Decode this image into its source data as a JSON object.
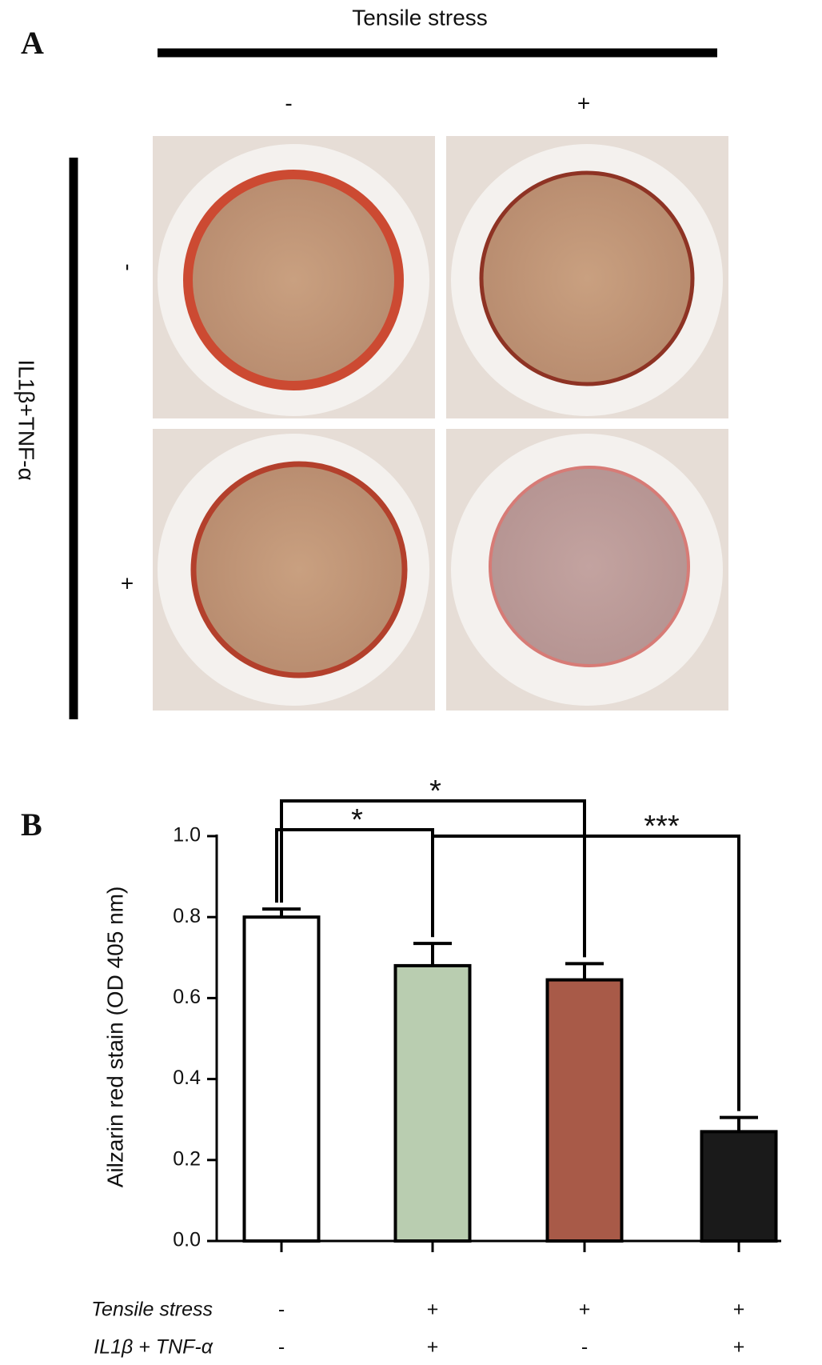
{
  "panel_a": {
    "label": "A",
    "column_header": "Tensile stress",
    "column_labels": [
      "-",
      "+"
    ],
    "row_header": "IL1β+TNF-α",
    "row_labels": [
      "-",
      "+"
    ]
  },
  "chart_data": {
    "type": "bar",
    "panel_label": "B",
    "y_label": "Ailzarin red stain (OD 405 nm)",
    "categories": [
      null,
      null,
      null,
      null
    ],
    "values": [
      0.8,
      0.68,
      0.645,
      0.27
    ],
    "errors": [
      0.02,
      0.055,
      0.04,
      0.035
    ],
    "colors": [
      "#ffffff",
      "#b9cdb0",
      "#a85a48",
      "#1a1a1a"
    ],
    "ylim": [
      0,
      1
    ],
    "yticks": [
      {
        "value": 0,
        "label": "0.0"
      },
      0.2,
      0.4,
      0.6,
      0.8,
      {
        "value": 1,
        "label": "1.0"
      }
    ],
    "conditions": [
      {
        "name": "Tensile stress",
        "values": [
          "-",
          "+",
          "+",
          "+"
        ]
      },
      {
        "name": "IL1β + TNF-α",
        "values": [
          "-",
          "+",
          "-",
          "+"
        ]
      }
    ],
    "significance": [
      {
        "label": "*",
        "groups": [
          0,
          2
        ]
      },
      {
        "label": "*",
        "groups": [
          0,
          1
        ]
      },
      {
        "label": "***",
        "groups": [
          1,
          3
        ]
      }
    ]
  }
}
